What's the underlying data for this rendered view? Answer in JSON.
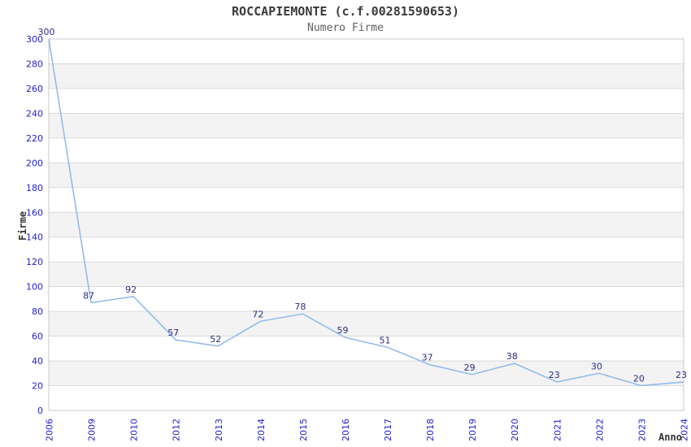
{
  "chart_data": {
    "type": "line",
    "title": "ROCCAPIEMONTE (c.f.00281590653)",
    "subtitle": "Numero Firme",
    "xlabel": "Anno",
    "ylabel": "Firme",
    "categories": [
      "2006",
      "2009",
      "2010",
      "2012",
      "2013",
      "2014",
      "2015",
      "2016",
      "2017",
      "2018",
      "2019",
      "2020",
      "2021",
      "2022",
      "2023",
      "2024"
    ],
    "values": [
      300,
      87,
      92,
      57,
      52,
      72,
      78,
      59,
      51,
      37,
      29,
      38,
      23,
      30,
      20,
      23
    ],
    "ylim": [
      0,
      300
    ],
    "ytick_step": 20,
    "grid": "horizontal gridlines with alternating shaded bands",
    "legend": "none",
    "colors": {
      "line": "#8db8ea",
      "tick_label": "#2222cc",
      "data_label": "#2d2d86",
      "band": "#f3f3f3",
      "gridline": "#dadada",
      "border": "#c8c8c8",
      "title": "#3b3b3b",
      "subtitle": "#606060",
      "axis_title": "#333333",
      "background": "#ffffff"
    }
  }
}
